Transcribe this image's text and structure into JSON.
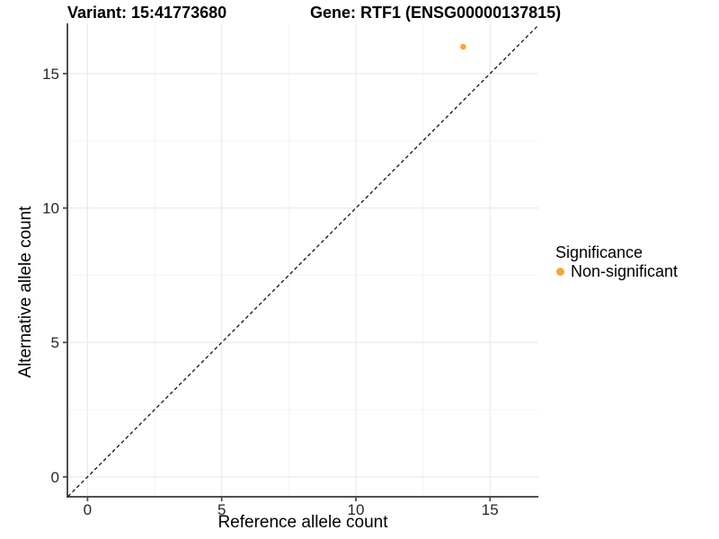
{
  "page": {
    "background_color": "#FFFFFF"
  },
  "chart_data": {
    "type": "scatter",
    "titles": [
      {
        "text": "Variant: 15:41773680"
      },
      {
        "text": "Gene: RTF1 (ENSG00000137815)"
      }
    ],
    "xlabel": "Reference allele count",
    "ylabel": "Alternative allele count",
    "xlim": [
      -0.75,
      16.8
    ],
    "ylim": [
      -0.74,
      16.87
    ],
    "xticks": [
      0,
      5,
      10,
      15
    ],
    "yticks": [
      0,
      5,
      10,
      15
    ],
    "xminor": [
      2.5,
      7.5,
      12.5
    ],
    "yminor": [
      2.5,
      7.5,
      12.5
    ],
    "grid": {
      "enabled": true,
      "major_color": "#E9E9E9",
      "minor_color": "#F3F3F3"
    },
    "axis_color": "#4F4F4F",
    "tick_label_color": "#262626",
    "reference_line": {
      "type": "identity",
      "slope": 1,
      "intercept": 0,
      "style": "dashed",
      "color": "#000000"
    },
    "series": [
      {
        "name": "Non-significant",
        "color": "#F9A43C",
        "points": [
          {
            "x": 14,
            "y": 16
          }
        ]
      }
    ],
    "legend": {
      "title": "Significance",
      "position": "right",
      "entries": [
        {
          "label": "Non-significant",
          "color": "#F9A43C",
          "marker": "dot-icon"
        }
      ]
    }
  }
}
